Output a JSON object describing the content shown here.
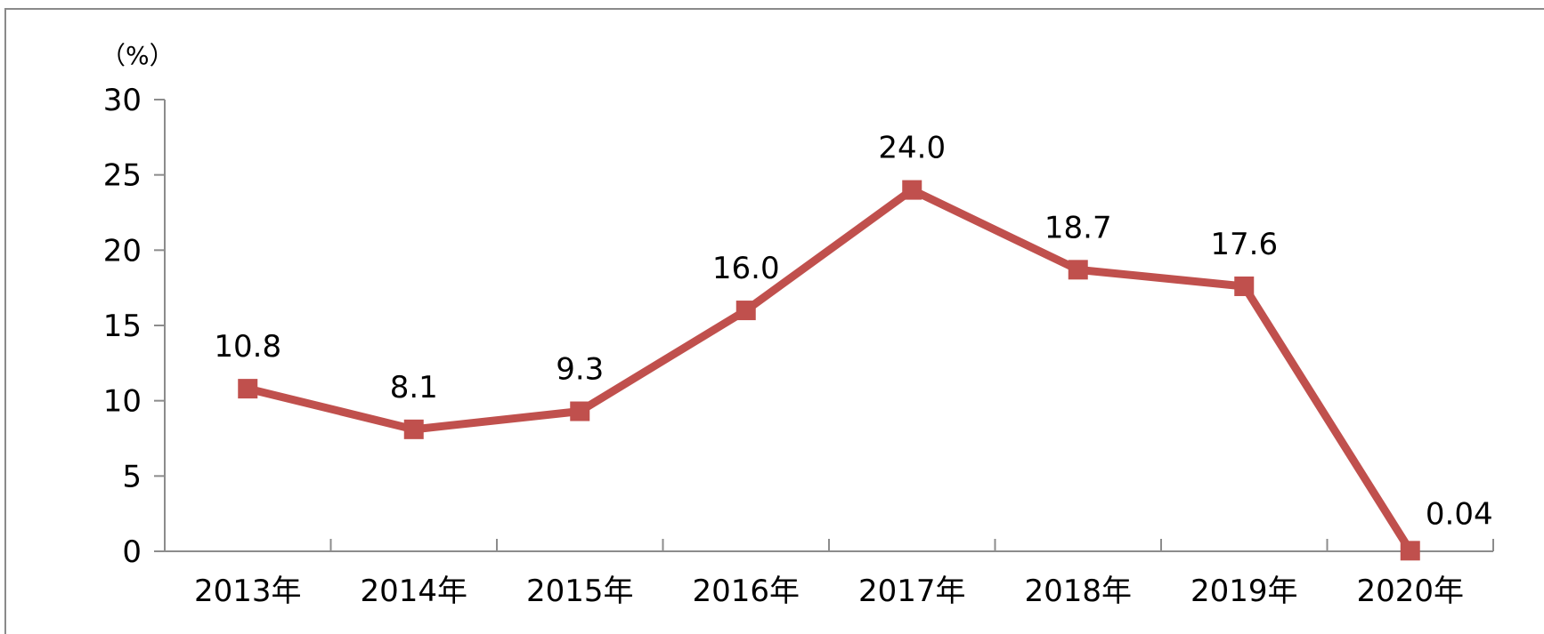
{
  "chart_data": {
    "type": "line",
    "title": "",
    "xlabel": "",
    "ylabel": "（%）",
    "categories": [
      "2013年",
      "2014年",
      "2015年",
      "2016年",
      "2017年",
      "2018年",
      "2019年",
      "2020年"
    ],
    "series": [
      {
        "values": [
          10.8,
          8.1,
          9.3,
          16.0,
          24.0,
          18.7,
          17.6,
          0.04
        ],
        "data_labels": [
          "10.8",
          "8.1",
          "9.3",
          "16.0",
          "24.0",
          "18.7",
          "17.6",
          "0.04"
        ],
        "color": "#c0504d",
        "marker": "square"
      }
    ],
    "yticks": [
      "0",
      "5",
      "10",
      "15",
      "20",
      "25",
      "30"
    ],
    "ylim": [
      0,
      30
    ],
    "grid": false,
    "legend": "none"
  }
}
